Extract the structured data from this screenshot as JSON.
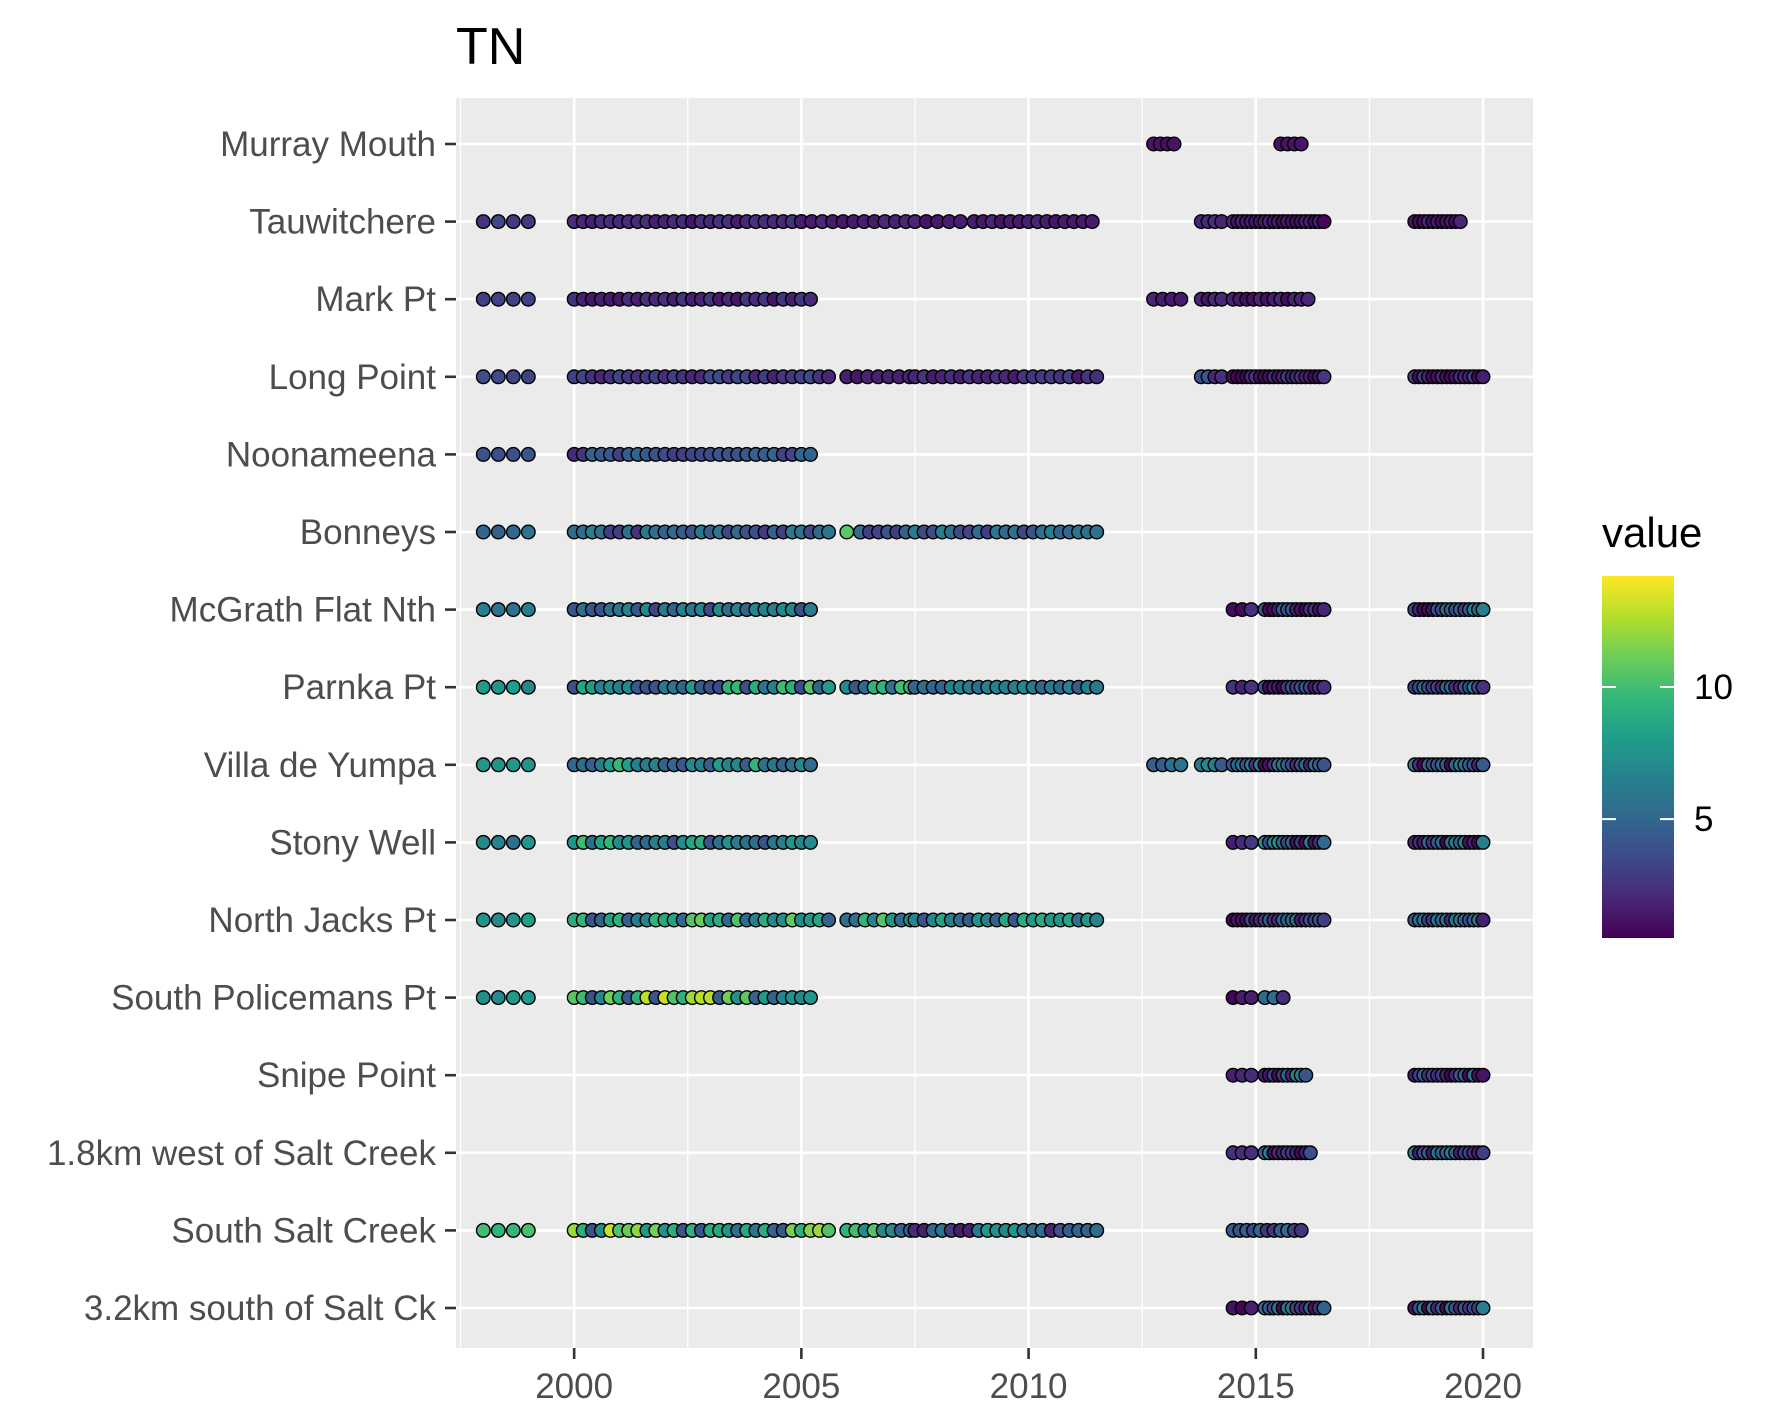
{
  "chart_data": {
    "type": "scatter",
    "title": "TN",
    "xlabel": "",
    "ylabel": "",
    "xlim": [
      1997.4,
      2021.1
    ],
    "x_ticks": [
      2000,
      2005,
      2010,
      2015,
      2020
    ],
    "x_minor": [
      1997.5,
      2002.5,
      2007.5,
      2012.5,
      2017.5
    ],
    "sites": [
      "Murray Mouth",
      "Tauwitchere",
      "Mark Pt",
      "Long Point",
      "Noonameena",
      "Bonneys",
      "McGrath Flat Nth",
      "Parnka Pt",
      "Villa de Yumpa",
      "Stony Well",
      "North Jacks Pt",
      "South Policemans Pt",
      "Snipe Point",
      "1.8km west of Salt Creek",
      "South Salt Creek",
      "3.2km south of Salt Ck"
    ],
    "grid": true,
    "legend": {
      "title": "value",
      "position": "right",
      "min": 0.5,
      "max": 14.2,
      "ticks": [
        5,
        10
      ],
      "palette": [
        "#440154",
        "#482878",
        "#3e4a89",
        "#31688e",
        "#26828e",
        "#1f9e89",
        "#35b779",
        "#6ece58",
        "#b5de2b",
        "#fde725"
      ]
    },
    "series": [
      {
        "site": "Murray Mouth",
        "points": [
          [
            2012.75,
            1.2
          ],
          [
            2012.9,
            1.3
          ],
          [
            2013.05,
            1.1
          ],
          [
            2013.2,
            1.2
          ],
          [
            2015.55,
            1.3
          ],
          [
            2015.7,
            1.2
          ],
          [
            2015.85,
            1.2
          ],
          [
            2016.0,
            1.3
          ]
        ]
      },
      {
        "site": "Tauwitchere",
        "segments": [
          [
            1998.0,
            1999.0,
            0.33,
            2.5,
            3.5
          ],
          [
            2000.0,
            2005.0,
            0.2,
            1.3,
            2.6
          ],
          [
            2005.0,
            2007.4,
            0.23,
            1.2,
            2.2
          ],
          [
            2007.5,
            2008.7,
            0.25,
            1.2,
            2.0
          ],
          [
            2008.8,
            2011.5,
            0.2,
            1.2,
            2.0
          ],
          [
            2013.8,
            2014.3,
            0.15,
            1.5,
            3.0
          ],
          [
            2014.5,
            2016.5,
            0.1,
            0.6,
            2.0
          ],
          [
            2018.5,
            2019.5,
            0.1,
            0.8,
            2.0
          ]
        ]
      },
      {
        "site": "Mark Pt",
        "segments": [
          [
            1998.0,
            1999.0,
            0.33,
            2.2,
            3.2
          ],
          [
            2000.0,
            2005.3,
            0.2,
            1.3,
            2.8
          ],
          [
            2012.75,
            2013.4,
            0.2,
            1.3,
            2.2
          ],
          [
            2013.8,
            2014.3,
            0.15,
            1.3,
            2.4
          ],
          [
            2014.5,
            2016.2,
            0.15,
            1.0,
            2.0
          ]
        ]
      },
      {
        "site": "Long Point",
        "segments": [
          [
            1998.0,
            1999.0,
            0.33,
            3.0,
            3.8
          ],
          [
            2000.0,
            2005.7,
            0.2,
            1.5,
            3.6
          ],
          [
            2006.0,
            2007.4,
            0.23,
            1.2,
            2.2
          ],
          [
            2007.5,
            2011.5,
            0.2,
            1.4,
            3.0
          ],
          [
            2013.8,
            2014.3,
            0.15,
            2.0,
            4.5
          ],
          [
            2014.5,
            2016.5,
            0.1,
            0.6,
            3.0
          ],
          [
            2018.5,
            2020.0,
            0.1,
            0.6,
            3.0
          ]
        ]
      },
      {
        "site": "Noonameena",
        "segments": [
          [
            1998.0,
            1999.0,
            0.33,
            3.8,
            4.6
          ],
          [
            2000.0,
            2005.3,
            0.2,
            1.8,
            5.0
          ]
        ]
      },
      {
        "site": "Bonneys",
        "segments": [
          [
            1998.0,
            1999.0,
            0.33,
            4.5,
            5.8
          ],
          [
            2000.0,
            2005.7,
            0.2,
            2.0,
            6.5
          ],
          [
            2006.0,
            2006.3,
            0.3,
            10.5,
            11.5
          ],
          [
            2006.3,
            2007.4,
            0.2,
            3.0,
            5.5
          ],
          [
            2007.5,
            2011.5,
            0.2,
            3.0,
            6.5
          ]
        ]
      },
      {
        "site": "McGrath Flat Nth",
        "segments": [
          [
            1998.0,
            1999.0,
            0.33,
            5.5,
            7.0
          ],
          [
            2000.0,
            2005.3,
            0.2,
            3.0,
            7.5
          ],
          [
            2014.5,
            2014.9,
            0.2,
            0.6,
            2.5
          ],
          [
            2015.2,
            2016.5,
            0.1,
            0.6,
            4.5
          ],
          [
            2018.5,
            2020.0,
            0.1,
            0.6,
            6.5
          ]
        ]
      },
      {
        "site": "Parnka Pt",
        "segments": [
          [
            1998.0,
            1999.0,
            0.33,
            6.5,
            8.5
          ],
          [
            2000.0,
            2005.7,
            0.2,
            3.5,
            10.5
          ],
          [
            2006.0,
            2007.4,
            0.2,
            4.0,
            11.0
          ],
          [
            2007.5,
            2011.5,
            0.2,
            4.0,
            7.0
          ],
          [
            2014.5,
            2014.9,
            0.2,
            0.6,
            3.0
          ],
          [
            2015.2,
            2016.5,
            0.1,
            0.6,
            4.5
          ],
          [
            2018.5,
            2020.0,
            0.1,
            0.6,
            6.5
          ]
        ]
      },
      {
        "site": "Villa de Yumpa",
        "segments": [
          [
            1998.0,
            1999.0,
            0.33,
            6.5,
            8.5
          ],
          [
            2000.0,
            2005.3,
            0.2,
            4.0,
            10.5
          ],
          [
            2012.75,
            2013.4,
            0.2,
            1.0,
            7.0
          ],
          [
            2013.8,
            2014.3,
            0.15,
            4.0,
            7.5
          ],
          [
            2014.5,
            2016.5,
            0.1,
            0.6,
            6.5
          ],
          [
            2018.5,
            2020.0,
            0.1,
            0.6,
            6.5
          ]
        ]
      },
      {
        "site": "Stony Well",
        "segments": [
          [
            1998.0,
            1999.0,
            0.33,
            5.5,
            8.0
          ],
          [
            2000.0,
            2005.3,
            0.2,
            3.5,
            10.0
          ],
          [
            2014.5,
            2014.9,
            0.2,
            0.6,
            3.0
          ],
          [
            2015.2,
            2016.5,
            0.1,
            0.6,
            7.5
          ],
          [
            2018.5,
            2020.0,
            0.1,
            0.6,
            6.5
          ]
        ]
      },
      {
        "site": "North Jacks Pt",
        "segments": [
          [
            1998.0,
            1999.0,
            0.33,
            6.5,
            8.5
          ],
          [
            2000.0,
            2005.7,
            0.2,
            4.0,
            11.0
          ],
          [
            2006.0,
            2007.4,
            0.2,
            4.5,
            10.5
          ],
          [
            2007.5,
            2011.5,
            0.2,
            4.0,
            9.5
          ],
          [
            2014.5,
            2016.5,
            0.1,
            0.6,
            6.5
          ],
          [
            2018.5,
            2020.0,
            0.1,
            0.6,
            6.5
          ]
        ]
      },
      {
        "site": "South Policemans Pt",
        "segments": [
          [
            1998.0,
            1999.0,
            0.33,
            6.0,
            8.5
          ],
          [
            2000.0,
            2005.3,
            0.2,
            4.0,
            13.5
          ],
          [
            2014.5,
            2014.9,
            0.2,
            0.6,
            3.0
          ],
          [
            2015.2,
            2015.6,
            0.2,
            2.0,
            6.0
          ]
        ]
      },
      {
        "site": "Snipe Point",
        "segments": [
          [
            2014.5,
            2014.9,
            0.2,
            0.6,
            3.0
          ],
          [
            2015.2,
            2016.1,
            0.1,
            0.6,
            7.0
          ],
          [
            2018.5,
            2020.0,
            0.1,
            0.6,
            6.5
          ]
        ]
      },
      {
        "site": "1.8km west of Salt Creek",
        "segments": [
          [
            2014.5,
            2014.9,
            0.2,
            0.6,
            3.0
          ],
          [
            2015.2,
            2016.2,
            0.1,
            0.6,
            7.0
          ],
          [
            2018.5,
            2020.0,
            0.1,
            0.6,
            6.5
          ]
        ]
      },
      {
        "site": "South Salt Creek",
        "segments": [
          [
            1998.0,
            1999.0,
            0.33,
            6.5,
            11.0
          ],
          [
            2000.0,
            2005.7,
            0.2,
            4.0,
            13.5
          ],
          [
            2006.0,
            2007.4,
            0.2,
            4.5,
            11.0
          ],
          [
            2007.5,
            2011.5,
            0.2,
            1.5,
            8.0
          ],
          [
            2014.5,
            2016.1,
            0.15,
            2.5,
            5.5
          ]
        ]
      },
      {
        "site": "3.2km south of Salt Ck",
        "segments": [
          [
            2014.5,
            2014.9,
            0.2,
            0.6,
            3.0
          ],
          [
            2015.2,
            2016.5,
            0.1,
            0.6,
            7.0
          ],
          [
            2018.5,
            2020.0,
            0.1,
            0.6,
            6.5
          ]
        ]
      }
    ]
  }
}
